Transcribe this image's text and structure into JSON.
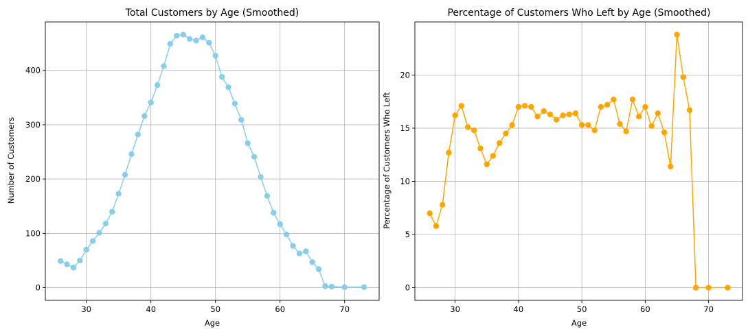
{
  "chart_data": [
    {
      "type": "line",
      "title": "Total Customers by Age (Smoothed)",
      "xlabel": "Age",
      "ylabel": "Number of Customers",
      "xlim": [
        23.65,
        75.35
      ],
      "ylim": [
        -23.3,
        489.3
      ],
      "xticks": [
        30,
        40,
        50,
        60,
        70
      ],
      "yticks": [
        0,
        100,
        200,
        300,
        400
      ],
      "grid": true,
      "marker": "circle",
      "series": [
        {
          "color": "#87ceeb",
          "x": [
            26,
            27,
            28,
            29,
            30,
            31,
            32,
            33,
            34,
            35,
            36,
            37,
            38,
            39,
            40,
            41,
            42,
            43,
            44,
            45,
            46,
            47,
            48,
            49,
            50,
            51,
            52,
            53,
            54,
            55,
            56,
            57,
            58,
            59,
            60,
            61,
            62,
            63,
            64,
            65,
            66,
            67,
            68,
            70,
            73
          ],
          "y": [
            49,
            43,
            37,
            50,
            70,
            86,
            101,
            118,
            140,
            173,
            208,
            246,
            282,
            316,
            341,
            373,
            408,
            449,
            464,
            466,
            458,
            455,
            461,
            451,
            427,
            388,
            369,
            339,
            309,
            266,
            241,
            204,
            169,
            138,
            117,
            98,
            77,
            63,
            67,
            47,
            34,
            3,
            2,
            1,
            1
          ]
        }
      ]
    },
    {
      "type": "line",
      "title": "Percentage of Customers Who Left by Age (Smoothed)",
      "xlabel": "Age",
      "ylabel": "Percentage of Customers Who Left",
      "xlim": [
        23.65,
        75.35
      ],
      "ylim": [
        -1.19,
        24.99
      ],
      "xticks": [
        30,
        40,
        50,
        60,
        70
      ],
      "yticks": [
        0,
        5,
        10,
        15,
        20
      ],
      "grid": true,
      "marker": "circle",
      "series": [
        {
          "color": "#ffa500",
          "x": [
            26,
            27,
            28,
            29,
            30,
            31,
            32,
            33,
            34,
            35,
            36,
            37,
            38,
            39,
            40,
            41,
            42,
            43,
            44,
            45,
            46,
            47,
            48,
            49,
            50,
            51,
            52,
            53,
            54,
            55,
            56,
            57,
            58,
            59,
            60,
            61,
            62,
            63,
            64,
            65,
            66,
            67,
            68,
            70,
            73
          ],
          "y": [
            7.0,
            5.8,
            7.8,
            12.7,
            16.2,
            17.1,
            15.1,
            14.8,
            13.1,
            11.6,
            12.4,
            13.6,
            14.5,
            15.3,
            17.0,
            17.1,
            17.0,
            16.1,
            16.6,
            16.3,
            15.8,
            16.2,
            16.3,
            16.4,
            15.3,
            15.3,
            14.8,
            17.0,
            17.2,
            17.7,
            15.4,
            14.7,
            17.7,
            16.1,
            17.0,
            15.2,
            16.4,
            14.6,
            11.4,
            23.8,
            19.8,
            16.7,
            0,
            0,
            0
          ]
        }
      ]
    }
  ]
}
